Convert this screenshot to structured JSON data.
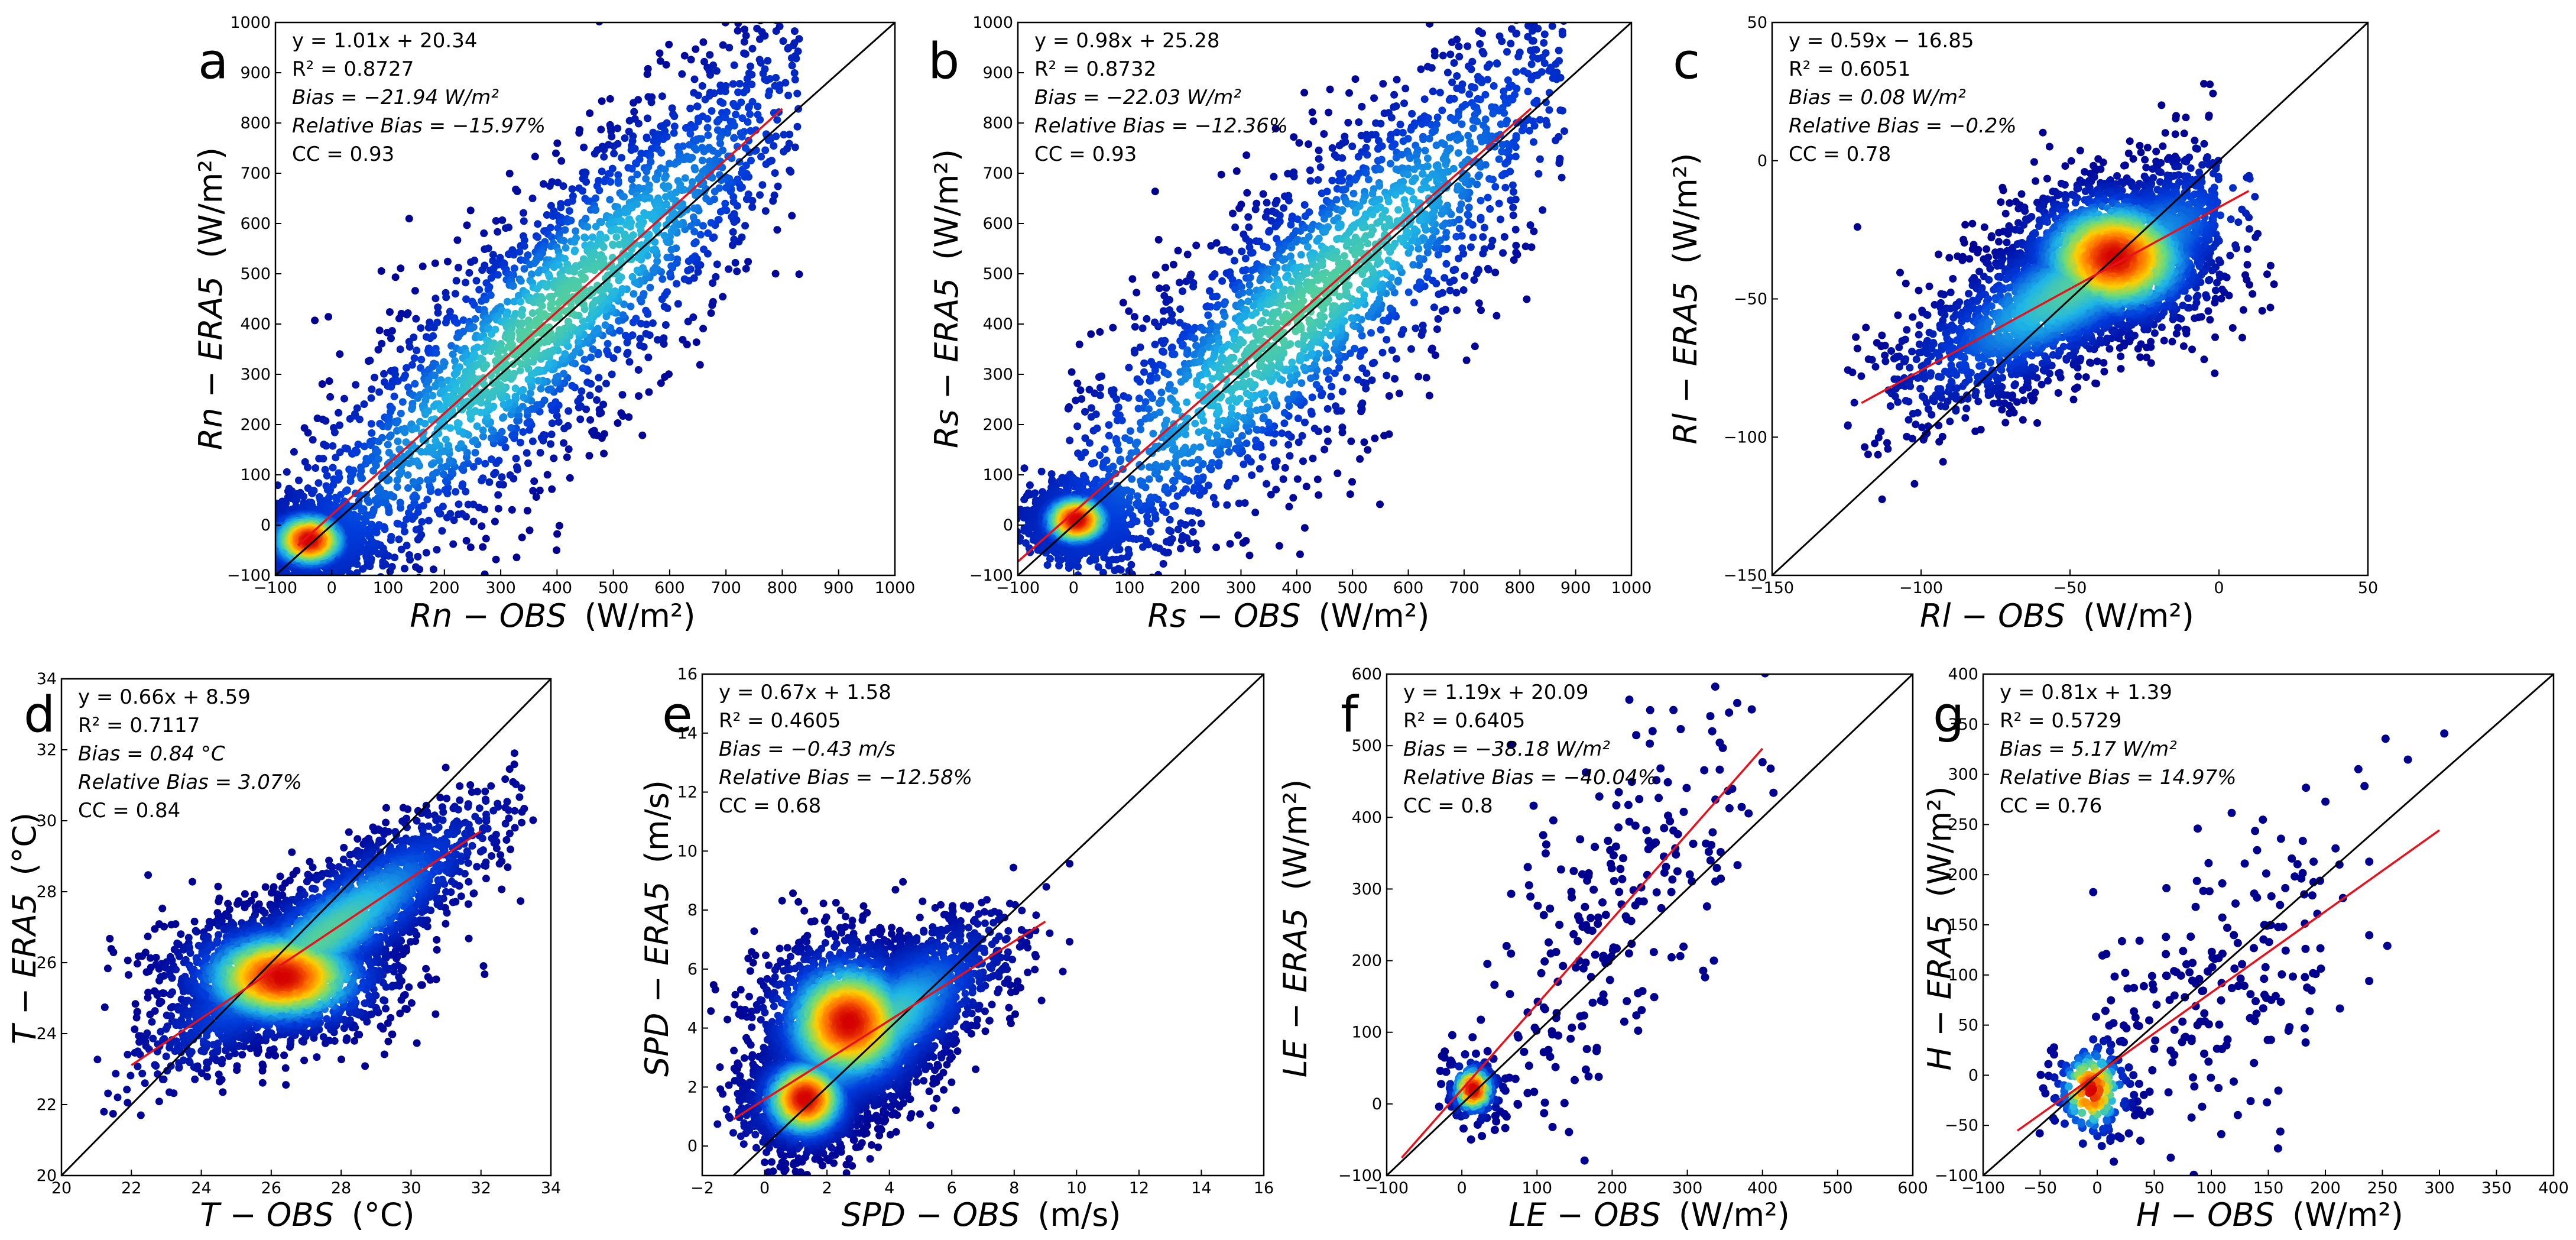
{
  "figure": {
    "description_panels": "a-g",
    "colors": {
      "one_to_one_line": "#000000",
      "fit_line": "#e8101a",
      "point_low": "#00008f",
      "point_mid": "#1fb6e6",
      "point_high": "#ffcf00",
      "point_peak": "#d40000",
      "frame": "#000000"
    }
  },
  "chart_data": [
    {
      "id": "a",
      "type": "scatter",
      "letter": "a",
      "xlabel": "Rn − OBS",
      "xunit": "(W/m²)",
      "ylabel": "Rn − ERA5",
      "yunit": "(W/m²)",
      "xlim": [
        -100,
        1000
      ],
      "ylim": [
        -100,
        1000
      ],
      "xticks": [
        "−100",
        "0",
        "100",
        "200",
        "300",
        "400",
        "500",
        "600",
        "700",
        "800",
        "900",
        "1000"
      ],
      "yticks": [
        "−100",
        "0",
        "100",
        "200",
        "300",
        "400",
        "500",
        "600",
        "700",
        "800",
        "900",
        "1000"
      ],
      "stats": {
        "equation": "y  =  1.01x  +  20.34",
        "r2": "R²  =  0.8727",
        "bias": "Bias  =  −21.94  W/m²",
        "relative_bias": "Relative Bias  =  −15.97%",
        "cc": "CC  =  0.93"
      },
      "fit": {
        "slope": 1.01,
        "intercept": 20.34,
        "x_range": [
          -60,
          800
        ]
      },
      "density_cores": [
        {
          "x": -40,
          "y": -30,
          "sx": 25,
          "sy": 20
        }
      ],
      "scatter_cloud": {
        "x_center": 380,
        "slope": 1.0,
        "spread_x": 260,
        "spread_y": 140,
        "x_min": -80,
        "x_max": 830,
        "n": 2600
      }
    },
    {
      "id": "b",
      "type": "scatter",
      "letter": "b",
      "xlabel": "Rs − OBS",
      "xunit": "(W/m²)",
      "ylabel": "Rs − ERA5",
      "yunit": "(W/m²)",
      "xlim": [
        -100,
        1000
      ],
      "ylim": [
        -100,
        1000
      ],
      "xticks": [
        "−100",
        "0",
        "100",
        "200",
        "300",
        "400",
        "500",
        "600",
        "700",
        "800",
        "900",
        "1000"
      ],
      "yticks": [
        "−100",
        "0",
        "100",
        "200",
        "300",
        "400",
        "500",
        "600",
        "700",
        "800",
        "900",
        "1000"
      ],
      "stats": {
        "equation": "y  =  0.98x  +  25.28",
        "r2": "R²  =  0.8732",
        "bias": "Bias  =  −22.03  W/m²",
        "relative_bias": "Relative Bias  =  −12.36%",
        "cc": "CC  =  0.93"
      },
      "fit": {
        "slope": 0.98,
        "intercept": 25.28,
        "x_range": [
          -100,
          820
        ]
      },
      "density_cores": [
        {
          "x": 5,
          "y": 10,
          "sx": 22,
          "sy": 18
        }
      ],
      "scatter_cloud": {
        "x_center": 420,
        "slope": 0.98,
        "spread_x": 270,
        "spread_y": 150,
        "x_min": -10,
        "x_max": 880,
        "n": 2600
      }
    },
    {
      "id": "c",
      "type": "scatter",
      "letter": "c",
      "xlabel": "Rl − OBS",
      "xunit": "(W/m²)",
      "ylabel": "Rl − ERA5",
      "yunit": "(W/m²)",
      "xlim": [
        -150,
        50
      ],
      "ylim": [
        -150,
        50
      ],
      "xticks": [
        "−150",
        "−100",
        "−50",
        "0",
        "50"
      ],
      "yticks": [
        "−150",
        "−100",
        "−50",
        "0",
        "50"
      ],
      "stats": {
        "equation": "y  =  0.59x  −  16.85",
        "r2": "R²  =  0.6051",
        "bias": "Bias  =  0.08  W/m²",
        "relative_bias": "Relative Bias  =  −0.2%",
        "cc": "CC  =  0.78"
      },
      "fit": {
        "slope": 0.59,
        "intercept": -16.85,
        "x_range": [
          -120,
          10
        ]
      },
      "density_cores": [
        {
          "x": -35,
          "y": -35,
          "sx": 10,
          "sy": 8
        }
      ],
      "scatter_cloud": {
        "x_center": -45,
        "slope": 0.59,
        "spread_x": 30,
        "spread_y": 14,
        "x_min": -125,
        "x_max": 0,
        "n": 2600
      }
    },
    {
      "id": "d",
      "type": "scatter",
      "letter": "d",
      "xlabel": "T − OBS",
      "xunit": "(°C)",
      "ylabel": "T − ERA5",
      "yunit": "(°C)",
      "xlim": [
        20,
        34
      ],
      "ylim": [
        20,
        34
      ],
      "xticks": [
        "20",
        "22",
        "24",
        "26",
        "28",
        "30",
        "32",
        "34"
      ],
      "yticks": [
        "20",
        "22",
        "24",
        "26",
        "28",
        "30",
        "32",
        "34"
      ],
      "stats": {
        "equation": "y  =  0.66x  +  8.59",
        "r2": "R²  =  0.7117",
        "bias": "Bias  =  0.84  °C",
        "relative_bias": "Relative Bias  =  3.07%",
        "cc": "CC  =  0.84"
      },
      "fit": {
        "slope": 0.66,
        "intercept": 8.59,
        "x_range": [
          22,
          32
        ]
      },
      "density_cores": [
        {
          "x": 26.3,
          "y": 25.6,
          "sx": 0.9,
          "sy": 0.5
        }
      ],
      "scatter_cloud": {
        "x_center": 27.5,
        "slope": 0.66,
        "spread_x": 2.2,
        "spread_y": 0.9,
        "x_min": 21,
        "x_max": 33.5,
        "n": 2600
      }
    },
    {
      "id": "e",
      "type": "scatter",
      "letter": "e",
      "xlabel": "SPD − OBS",
      "xunit": "(m/s)",
      "ylabel": "SPD − ERA5",
      "yunit": "(m/s)",
      "xlim": [
        -2,
        16
      ],
      "ylim": [
        -1,
        16
      ],
      "xticks": [
        "−2",
        "0",
        "2",
        "4",
        "6",
        "8",
        "10",
        "12",
        "14",
        "16"
      ],
      "yticks": [
        "0",
        "2",
        "4",
        "6",
        "8",
        "10",
        "12",
        "14",
        "16"
      ],
      "stats": {
        "equation": "y  =  0.67x  +  1.58",
        "r2": "R²  =  0.4605",
        "bias": "Bias  =  −0.43  m/s",
        "relative_bias": "Relative Bias  =  −12.58%",
        "cc": "CC  =  0.68"
      },
      "fit": {
        "slope": 0.67,
        "intercept": 1.58,
        "x_range": [
          -1,
          9
        ]
      },
      "density_cores": [
        {
          "x": 2.7,
          "y": 4.2,
          "sx": 0.8,
          "sy": 0.8
        },
        {
          "x": 1.3,
          "y": 1.6,
          "sx": 0.5,
          "sy": 0.5
        }
      ],
      "scatter_cloud": {
        "x_center": 3.5,
        "slope": 0.67,
        "spread_x": 1.9,
        "spread_y": 1.2,
        "x_min": 0,
        "x_max": 10,
        "n": 2600
      }
    },
    {
      "id": "f",
      "type": "scatter",
      "letter": "f",
      "xlabel": "LE − OBS",
      "xunit": "(W/m²)",
      "ylabel": "LE − ERA5",
      "yunit": "(W/m²)",
      "xlim": [
        -100,
        600
      ],
      "ylim": [
        -100,
        600
      ],
      "xticks": [
        "−100",
        "0",
        "100",
        "200",
        "300",
        "400",
        "500",
        "600"
      ],
      "yticks": [
        "−100",
        "0",
        "100",
        "200",
        "300",
        "400",
        "500",
        "600"
      ],
      "stats": {
        "equation": "y  =  1.19x  +  20.09",
        "r2": "R²  =  0.6405",
        "bias": "Bias  =  −38.18  W/m²",
        "relative_bias": "Relative Bias  =  −40.04%",
        "cc": "CC  =  0.8"
      },
      "fit": {
        "slope": 1.19,
        "intercept": 20.09,
        "x_range": [
          -80,
          400
        ]
      },
      "density_cores": [
        {
          "x": 15,
          "y": 20,
          "sx": 10,
          "sy": 12
        }
      ],
      "scatter_cloud": {
        "x_center": 200,
        "slope": 1.0,
        "spread_x": 110,
        "spread_y": 120,
        "x_min": 0,
        "x_max": 450,
        "n": 260
      }
    },
    {
      "id": "g",
      "type": "scatter",
      "letter": "g",
      "xlabel": "H − OBS",
      "xunit": "(W/m²)",
      "ylabel": "H − ERA5",
      "yunit": "(W/m²)",
      "xlim": [
        -100,
        400
      ],
      "ylim": [
        -100,
        400
      ],
      "xticks": [
        "−100",
        "−50",
        "0",
        "50",
        "100",
        "150",
        "200",
        "250",
        "300",
        "350",
        "400"
      ],
      "yticks": [
        "−100",
        "−50",
        "0",
        "50",
        "100",
        "150",
        "200",
        "250",
        "300",
        "350",
        "400"
      ],
      "stats": {
        "equation": "y  =  0.81x  +  1.39",
        "r2": "R²  =  0.5729",
        "bias": "Bias  =  5.17  W/m²",
        "relative_bias": "Relative Bias  =  14.97%",
        "cc": "CC  =  0.76"
      },
      "fit": {
        "slope": 0.81,
        "intercept": 1.39,
        "x_range": [
          -70,
          300
        ]
      },
      "density_cores": [
        {
          "x": -5,
          "y": -15,
          "sx": 10,
          "sy": 15
        }
      ],
      "scatter_cloud": {
        "x_center": 110,
        "slope": 0.8,
        "spread_x": 70,
        "spread_y": 70,
        "x_min": -20,
        "x_max": 360,
        "n": 230
      }
    }
  ]
}
